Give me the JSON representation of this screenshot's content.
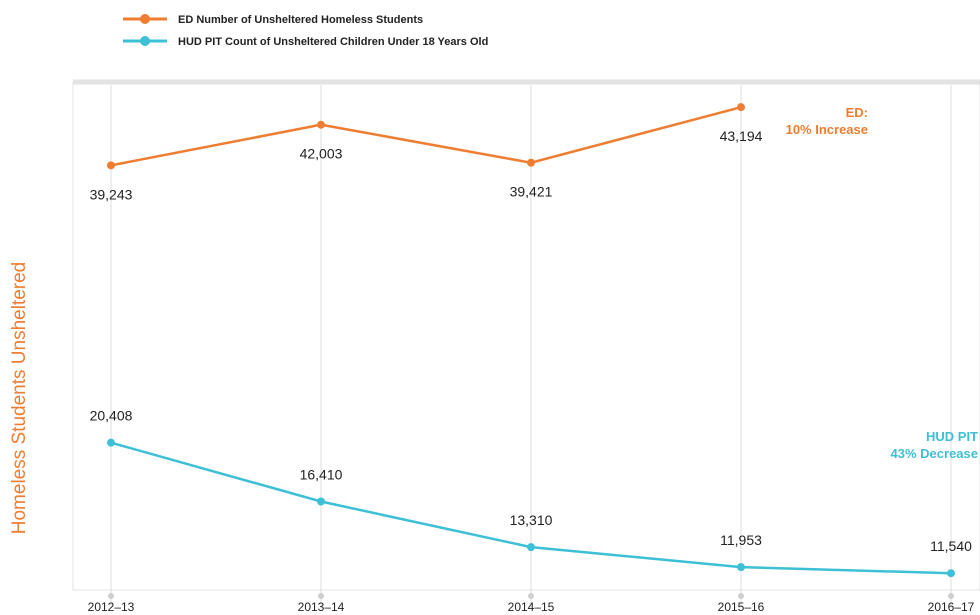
{
  "chart_data": {
    "type": "line",
    "y_axis_label": "Homeless  Students Unsheltered",
    "categories": [
      "2012–13",
      "2013–14",
      "2014–15",
      "2015–16",
      "2016–17"
    ],
    "series": [
      {
        "name": "ED Number of Unsheltered Homeless Students",
        "color": "#ee7d31",
        "values": [
          39243,
          42003,
          39421,
          43194,
          null
        ],
        "value_labels": [
          "39,243",
          "42,003",
          "39,421",
          "43,194",
          null
        ]
      },
      {
        "name": "HUD PIT Count of Unsheltered Children Under 18 Years Old",
        "color": "#3dbfd6",
        "values": [
          20408,
          16410,
          13310,
          11953,
          11540
        ],
        "value_labels": [
          "20,408",
          "16,410",
          "13,310",
          "11,953",
          "11,540"
        ]
      }
    ],
    "annotations": [
      {
        "lines": [
          "ED:",
          "10% Increase"
        ],
        "color": "#ee7d31"
      },
      {
        "lines": [
          "HUD PIT",
          "43% Decrease"
        ],
        "color": "#3dbfd6"
      }
    ],
    "ylim": [
      10400,
      44700
    ],
    "grid": true
  }
}
